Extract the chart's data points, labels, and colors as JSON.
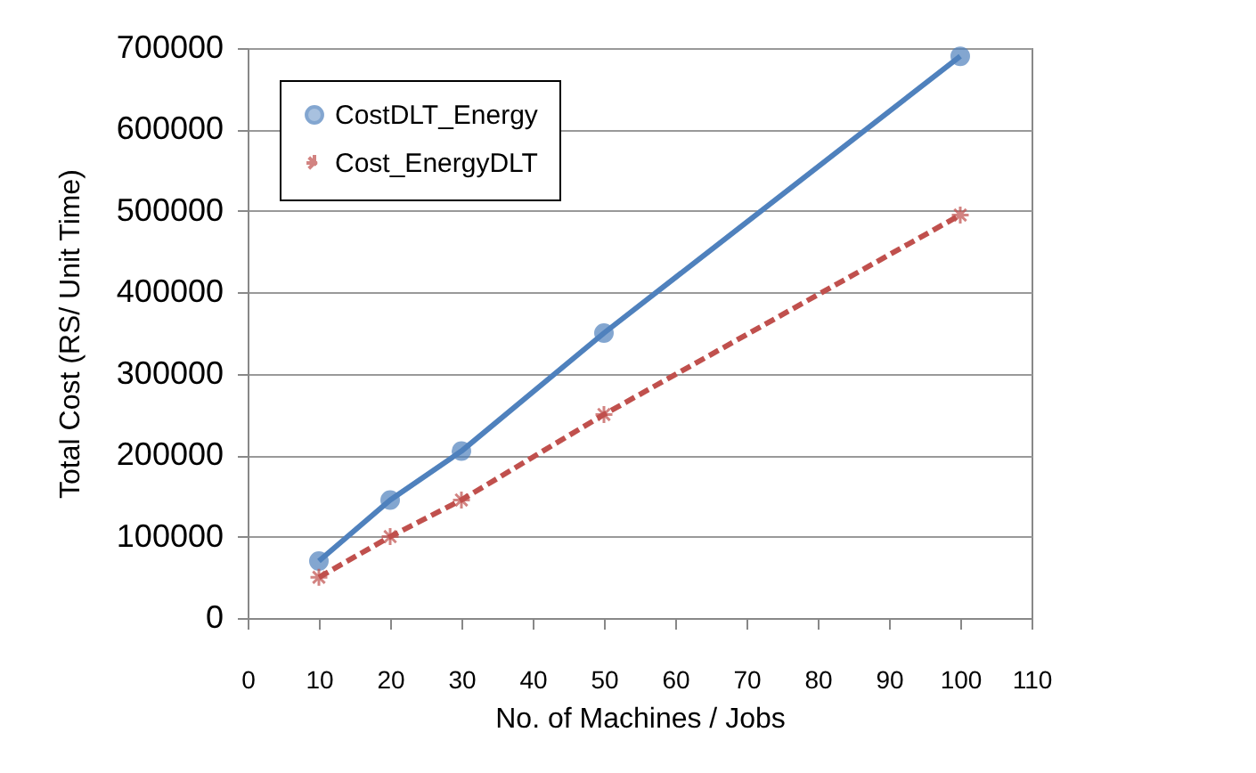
{
  "chart_data": {
    "type": "line",
    "xlabel": "No. of Machines / Jobs",
    "ylabel": "Total Cost (RS/ Unit Time)",
    "x": [
      10,
      20,
      30,
      50,
      100
    ],
    "series": [
      {
        "name": "CostDLT_Energy",
        "color": "#4f81bd",
        "marker": "circle",
        "line_style": "solid",
        "values": [
          70000,
          145000,
          205000,
          350000,
          690000
        ]
      },
      {
        "name": "Cost_EnergyDLT",
        "color": "#c0504d",
        "marker": "cross",
        "line_style": "dashed",
        "values": [
          50000,
          100000,
          145000,
          250000,
          495000
        ]
      }
    ],
    "xlim": [
      0,
      110
    ],
    "xticks": [
      0,
      10,
      20,
      30,
      40,
      50,
      60,
      70,
      80,
      90,
      100,
      110
    ],
    "ylim": [
      0,
      700000
    ],
    "yticks": [
      0,
      100000,
      200000,
      300000,
      400000,
      500000,
      600000,
      700000
    ],
    "grid": "y",
    "legend": "top left"
  }
}
